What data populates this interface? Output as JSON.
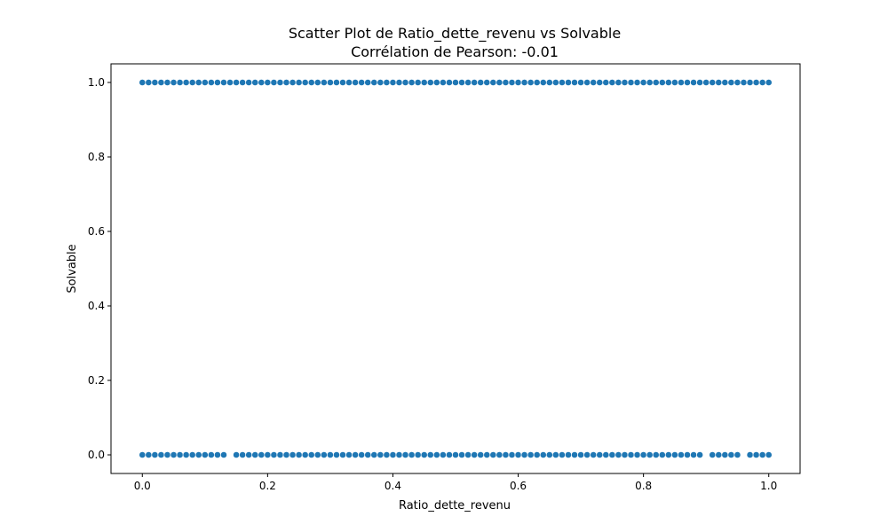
{
  "chart_data": {
    "type": "scatter",
    "title": "Scatter Plot de Ratio_dette_revenu vs Solvable",
    "subtitle": "Corrélation de Pearson: -0.01",
    "xlabel": "Ratio_dette_revenu",
    "ylabel": "Solvable",
    "xlim": [
      -0.05,
      1.05
    ],
    "ylim": [
      -0.05,
      1.05
    ],
    "xticks": [
      "0.0",
      "0.2",
      "0.4",
      "0.6",
      "0.8",
      "1.0"
    ],
    "yticks": [
      "0.0",
      "0.2",
      "0.4",
      "0.6",
      "0.8",
      "1.0"
    ],
    "grid": false,
    "marker_color": "#1f77b4",
    "series": [
      {
        "y": 1,
        "x_start": 0.0,
        "x_end": 1.0,
        "x_step": 0.01,
        "gaps": []
      },
      {
        "y": 0,
        "x_start": 0.0,
        "x_end": 1.0,
        "x_step": 0.01,
        "gaps": [
          [
            0.135,
            0.145
          ],
          [
            0.895,
            0.905
          ],
          [
            0.955,
            0.965
          ]
        ]
      }
    ]
  }
}
